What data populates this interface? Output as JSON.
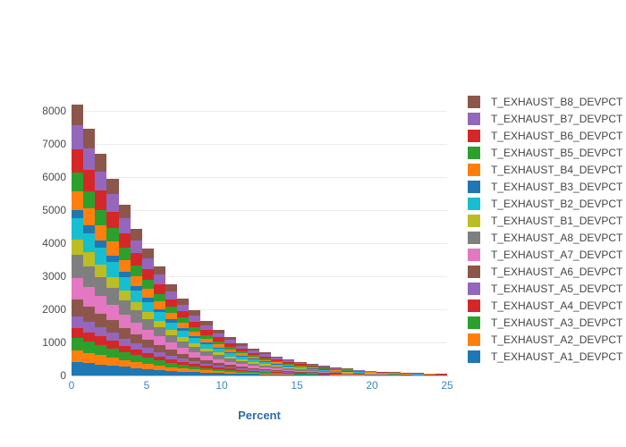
{
  "chart_data": {
    "type": "bar",
    "subtype": "stacked-histogram",
    "title": "",
    "xlabel": "Percent",
    "ylabel": "",
    "xlim": [
      0,
      25
    ],
    "ylim": [
      0,
      8780
    ],
    "xticks": [
      0,
      5,
      10,
      15,
      20,
      25
    ],
    "yticks": [
      0,
      1000,
      2000,
      3000,
      4000,
      5000,
      6000,
      7000,
      8000
    ],
    "grid": "horizontal-only",
    "legend_position": "right",
    "bar_gap": 0,
    "bin_start": 0,
    "bin_width": 0.78125,
    "bin_totals": [
      8200,
      7450,
      6700,
      5950,
      5150,
      4430,
      3850,
      3300,
      2770,
      2330,
      1960,
      1640,
      1380,
      1160,
      975,
      820,
      690,
      580,
      485,
      410,
      345,
      290,
      243,
      204,
      172,
      144,
      121,
      102,
      86,
      72,
      60,
      51
    ],
    "stack_note": "16 series stacked bottom-to-top; per-bin series value = bin_total * weight / sum(weights)",
    "series": [
      {
        "name": "T_EXHAUST_A1_DEVPCT",
        "color": "#1f77b4",
        "weight": 0.84
      },
      {
        "name": "T_EXHAUST_A2_DEVPCT",
        "color": "#ff7f0e",
        "weight": 0.69
      },
      {
        "name": "T_EXHAUST_A3_DEVPCT",
        "color": "#2ca02c",
        "weight": 0.79
      },
      {
        "name": "T_EXHAUST_A4_DEVPCT",
        "color": "#d62728",
        "weight": 0.63
      },
      {
        "name": "T_EXHAUST_A5_DEVPCT",
        "color": "#9467bd",
        "weight": 0.69
      },
      {
        "name": "T_EXHAUST_A6_DEVPCT",
        "color": "#8c564b",
        "weight": 1.06
      },
      {
        "name": "T_EXHAUST_A7_DEVPCT",
        "color": "#e377c2",
        "weight": 1.32
      },
      {
        "name": "T_EXHAUST_A8_DEVPCT",
        "color": "#7f7f7f",
        "weight": 1.43
      },
      {
        "name": "T_EXHAUST_B1_DEVPCT",
        "color": "#bcbd22",
        "weight": 0.95
      },
      {
        "name": "T_EXHAUST_B2_DEVPCT",
        "color": "#17becf",
        "weight": 1.32
      },
      {
        "name": "T_EXHAUST_B3_DEVPCT",
        "color": "#1f77b4",
        "weight": 0.53
      },
      {
        "name": "T_EXHAUST_B4_DEVPCT",
        "color": "#ff7f0e",
        "weight": 1.16
      },
      {
        "name": "T_EXHAUST_B5_DEVPCT",
        "color": "#2ca02c",
        "weight": 1.16
      },
      {
        "name": "T_EXHAUST_B6_DEVPCT",
        "color": "#d62728",
        "weight": 1.43
      },
      {
        "name": "T_EXHAUST_B7_DEVPCT",
        "color": "#9467bd",
        "weight": 1.48
      },
      {
        "name": "T_EXHAUST_B8_DEVPCT",
        "color": "#8c564b",
        "weight": 1.32
      }
    ],
    "legend_order": "reverse-of-stack (T_EXHAUST_B8_DEVPCT at top, T_EXHAUST_A1_DEVPCT at bottom)"
  },
  "style_colors": {
    "grid": "#ebebeb",
    "x_axis_line": "#a9c6de",
    "x_tick_text": "#3a87c4",
    "x_title_text": "#2b6cab",
    "y_tick_text": "#4a4a4a",
    "legend_text": "#444444",
    "background": "#ffffff"
  }
}
